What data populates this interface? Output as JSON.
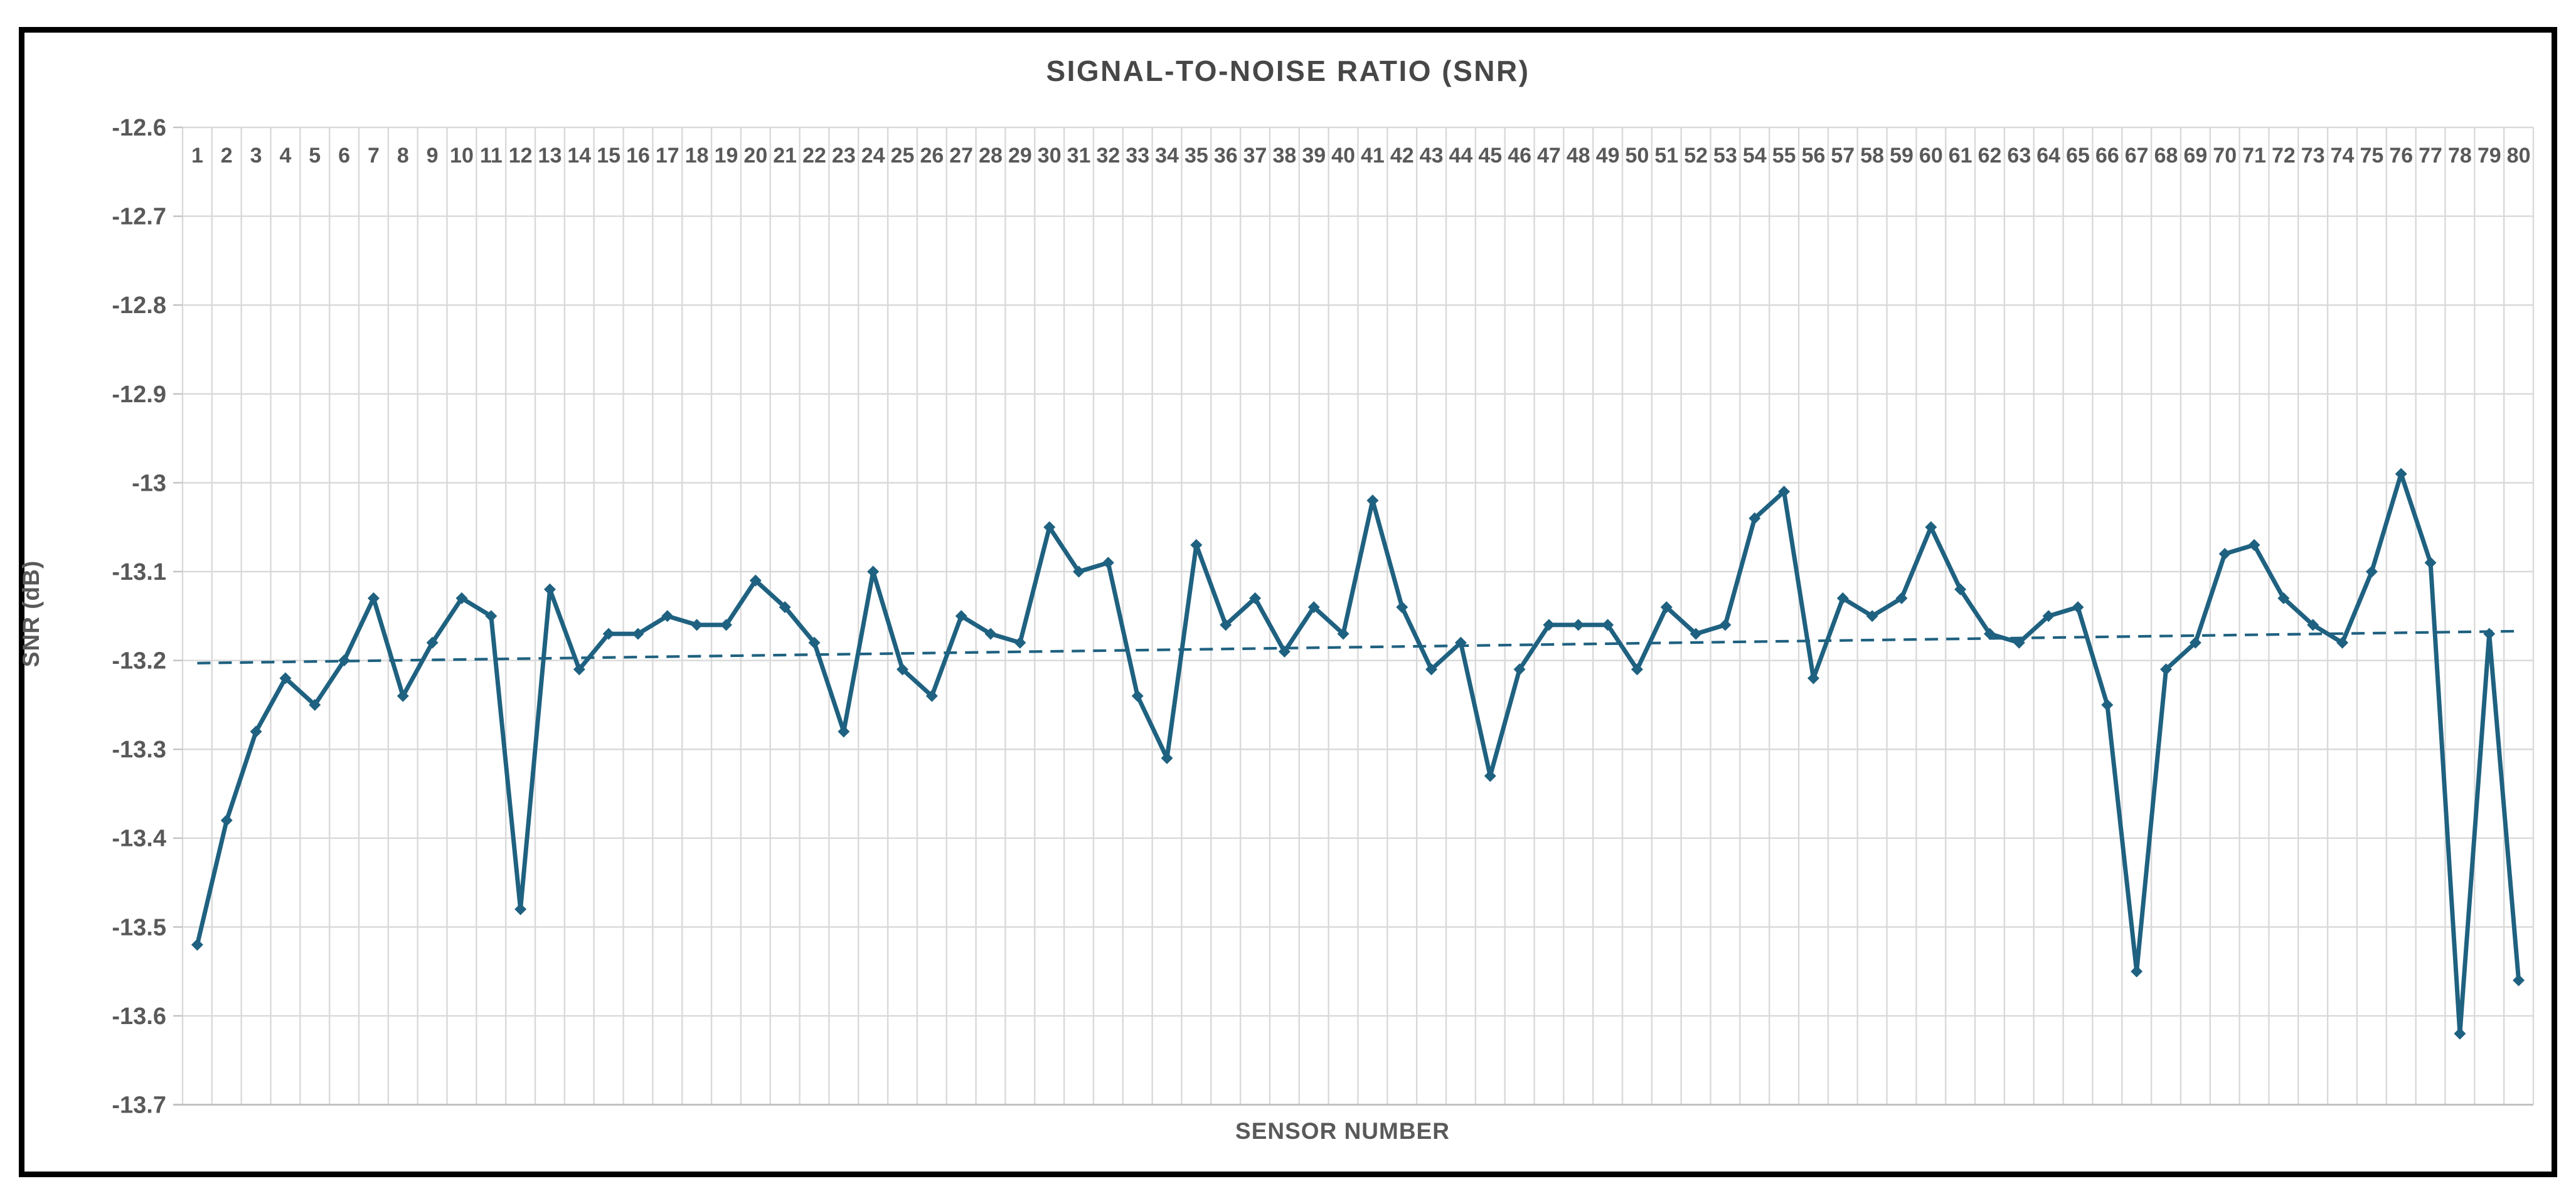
{
  "chart_data": {
    "type": "line",
    "title": "SIGNAL-TO-NOISE RATIO (SNR)",
    "xlabel": "SENSOR NUMBER",
    "ylabel": "SNR (dB)",
    "ylim": [
      -13.7,
      -12.6
    ],
    "ytick_step": 0.1,
    "ytick_labels": [
      "-12.6",
      "-12.7",
      "-12.8",
      "-12.9",
      "-13",
      "-13.1",
      "-13.2",
      "-13.3",
      "-13.4",
      "-13.5",
      "-13.6",
      "-13.7"
    ],
    "categories": [
      1,
      2,
      3,
      4,
      5,
      6,
      7,
      8,
      9,
      10,
      11,
      12,
      13,
      14,
      15,
      16,
      17,
      18,
      19,
      20,
      21,
      22,
      23,
      24,
      25,
      26,
      27,
      28,
      29,
      30,
      31,
      32,
      33,
      34,
      35,
      36,
      37,
      38,
      39,
      40,
      41,
      42,
      43,
      44,
      45,
      46,
      47,
      48,
      49,
      50,
      51,
      52,
      53,
      54,
      55,
      56,
      57,
      58,
      59,
      60,
      61,
      62,
      63,
      64,
      65,
      66,
      67,
      68,
      69,
      70,
      71,
      72,
      73,
      74,
      75,
      76,
      77,
      78,
      79,
      80
    ],
    "series": [
      {
        "name": "SNR",
        "values": [
          -13.52,
          -13.38,
          -13.28,
          -13.22,
          -13.25,
          -13.2,
          -13.13,
          -13.24,
          -13.18,
          -13.13,
          -13.15,
          -13.48,
          -13.12,
          -13.21,
          -13.17,
          -13.17,
          -13.15,
          -13.16,
          -13.16,
          -13.11,
          -13.14,
          -13.18,
          -13.28,
          -13.1,
          -13.21,
          -13.24,
          -13.15,
          -13.17,
          -13.18,
          -13.05,
          -13.1,
          -13.09,
          -13.24,
          -13.31,
          -13.07,
          -13.16,
          -13.13,
          -13.19,
          -13.14,
          -13.17,
          -13.02,
          -13.14,
          -13.21,
          -13.18,
          -13.33,
          -13.21,
          -13.16,
          -13.16,
          -13.16,
          -13.21,
          -13.14,
          -13.17,
          -13.16,
          -13.04,
          -13.01,
          -13.22,
          -13.13,
          -13.15,
          -13.13,
          -13.05,
          -13.12,
          -13.17,
          -13.18,
          -13.15,
          -13.14,
          -13.25,
          -13.55,
          -13.21,
          -13.18,
          -13.08,
          -13.07,
          -13.13,
          -13.16,
          -13.18,
          -13.1,
          -12.99,
          -13.09,
          -13.62,
          -13.17,
          -13.56
        ]
      }
    ],
    "trendline": {
      "style": "dashed",
      "start_value": -13.203,
      "end_value": -13.167
    },
    "grid": true,
    "legend": "none",
    "colors": {
      "series": "#1F6180",
      "trendline": "#1F6180",
      "gridline": "#D9D9D9",
      "axis_line": "#C2C2C2",
      "tick_text": "#595959",
      "title_text": "#474747",
      "frame": "#000000",
      "background": "#FFFFFF"
    }
  }
}
